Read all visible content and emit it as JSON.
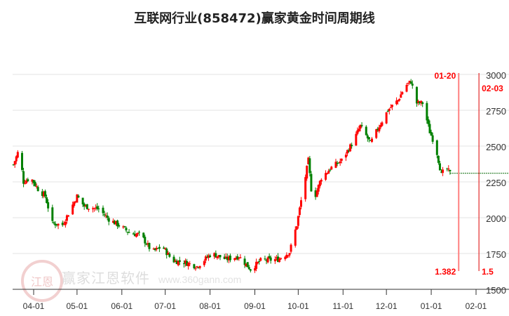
{
  "title": "互联网行业(858472)赢家黄金时间周期线",
  "watermark": {
    "text": "赢家江恩软件",
    "url_text": "www.360gann.com",
    "seal_text": "江恩赢家"
  },
  "chart_data": {
    "type": "candlestick",
    "title": "互联网行业(858472)赢家黄金时间周期线",
    "ylim": [
      1500,
      3000
    ],
    "y_ticks": [
      "3000",
      "2750",
      "2500",
      "2250",
      "2000",
      "1750",
      "1500"
    ],
    "x_ticks": [
      "04-01",
      "05-01",
      "06-01",
      "07-01",
      "08-01",
      "09-01",
      "10-01",
      "11-01",
      "12-01",
      "01-01",
      "02-01"
    ],
    "grid": true,
    "colors": {
      "up": "#ff0000",
      "down": "#008000",
      "cycle_line_1": "#ff8080",
      "cycle_line_2": "#dd0000",
      "label": "#ff0000"
    },
    "close_series": [
      [
        "03-18",
        2370
      ],
      [
        "03-22",
        2480
      ],
      [
        "03-25",
        2250
      ],
      [
        "03-30",
        2280
      ],
      [
        "04-04",
        2200
      ],
      [
        "04-09",
        2150
      ],
      [
        "04-14",
        1960
      ],
      [
        "04-21",
        1950
      ],
      [
        "04-26",
        2050
      ],
      [
        "05-01",
        2150
      ],
      [
        "05-06",
        2080
      ],
      [
        "05-16",
        2060
      ],
      [
        "05-23",
        1990
      ],
      [
        "05-31",
        1940
      ],
      [
        "06-07",
        1890
      ],
      [
        "06-14",
        1880
      ],
      [
        "06-22",
        1760
      ],
      [
        "06-29",
        1800
      ],
      [
        "07-06",
        1700
      ],
      [
        "07-14",
        1690
      ],
      [
        "07-23",
        1660
      ],
      [
        "08-02",
        1750
      ],
      [
        "08-12",
        1710
      ],
      [
        "08-21",
        1730
      ],
      [
        "08-29",
        1640
      ],
      [
        "09-05",
        1700
      ],
      [
        "09-17",
        1710
      ],
      [
        "09-25",
        1760
      ],
      [
        "09-30",
        1950
      ],
      [
        "10-08",
        2400
      ],
      [
        "10-11",
        2100
      ],
      [
        "10-17",
        2280
      ],
      [
        "10-24",
        2350
      ],
      [
        "10-31",
        2400
      ],
      [
        "11-08",
        2530
      ],
      [
        "11-13",
        2640
      ],
      [
        "11-20",
        2520
      ],
      [
        "11-25",
        2620
      ],
      [
        "12-02",
        2750
      ],
      [
        "12-09",
        2820
      ],
      [
        "12-14",
        2920
      ],
      [
        "12-18",
        2950
      ],
      [
        "12-22",
        2800
      ],
      [
        "12-26",
        2800
      ],
      [
        "12-31",
        2600
      ],
      [
        "01-04",
        2500
      ],
      [
        "01-08",
        2300
      ],
      [
        "01-11",
        2350
      ],
      [
        "01-14",
        2310
      ]
    ],
    "last_close": 2310,
    "cycle_lines": [
      {
        "date": "01-20",
        "label": "01-20",
        "ratio": "1.382"
      },
      {
        "date": "02-03",
        "label": "02-03",
        "ratio": "1.5"
      }
    ]
  }
}
